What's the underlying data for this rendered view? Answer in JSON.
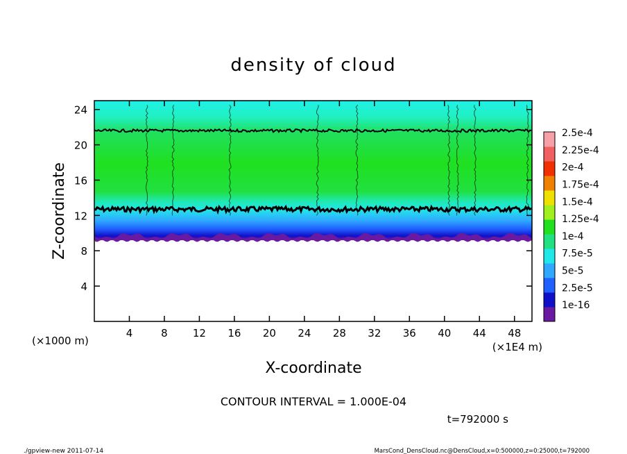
{
  "chart_data": {
    "type": "heatmap",
    "title": "density of cloud",
    "xlabel": "X-coordinate",
    "ylabel": "Z-coordinate",
    "x_unit_left": "(×1000 m)",
    "x_unit_right": "(×1E4 m)",
    "xlim": [
      0,
      50
    ],
    "ylim": [
      0,
      25
    ],
    "xticks": [
      "4",
      "8",
      "12",
      "16",
      "20",
      "24",
      "28",
      "32",
      "36",
      "40",
      "44",
      "48"
    ],
    "yticks": [
      "4",
      "8",
      "12",
      "16",
      "20",
      "24"
    ],
    "xtick_values": [
      4,
      8,
      12,
      16,
      20,
      24,
      28,
      32,
      36,
      40,
      44,
      48
    ],
    "ytick_values": [
      4,
      8,
      12,
      16,
      20,
      24
    ],
    "colorbar": {
      "labels": [
        "2.5e-4",
        "2.25e-4",
        "2e-4",
        "1.75e-4",
        "1.5e-4",
        "1.25e-4",
        "1e-4",
        "7.5e-5",
        "5e-5",
        "2.5e-5",
        "1e-16"
      ],
      "colors": [
        "#6a1aa0",
        "#1010c8",
        "#2060ff",
        "#30a8ff",
        "#20e8e8",
        "#20e080",
        "#20e020",
        "#a0f020",
        "#f0e000",
        "#f08000",
        "#f03000",
        "#f06060",
        "#f8a0a8"
      ]
    },
    "cloud_layer": {
      "base_z": 9.2,
      "lower_contour_z": 12.7,
      "upper_contour_z": 21.6,
      "top_z": 25
    },
    "contour_interval_text": "CONTOUR INTERVAL = 1.000E-04",
    "time_text": "t=792000  s",
    "footer_left": "./gpview-new   2011-07-14",
    "footer_right": "MarsCond_DensCloud.nc@DensCloud,x=0:500000,z=0:25000,t=792000"
  }
}
